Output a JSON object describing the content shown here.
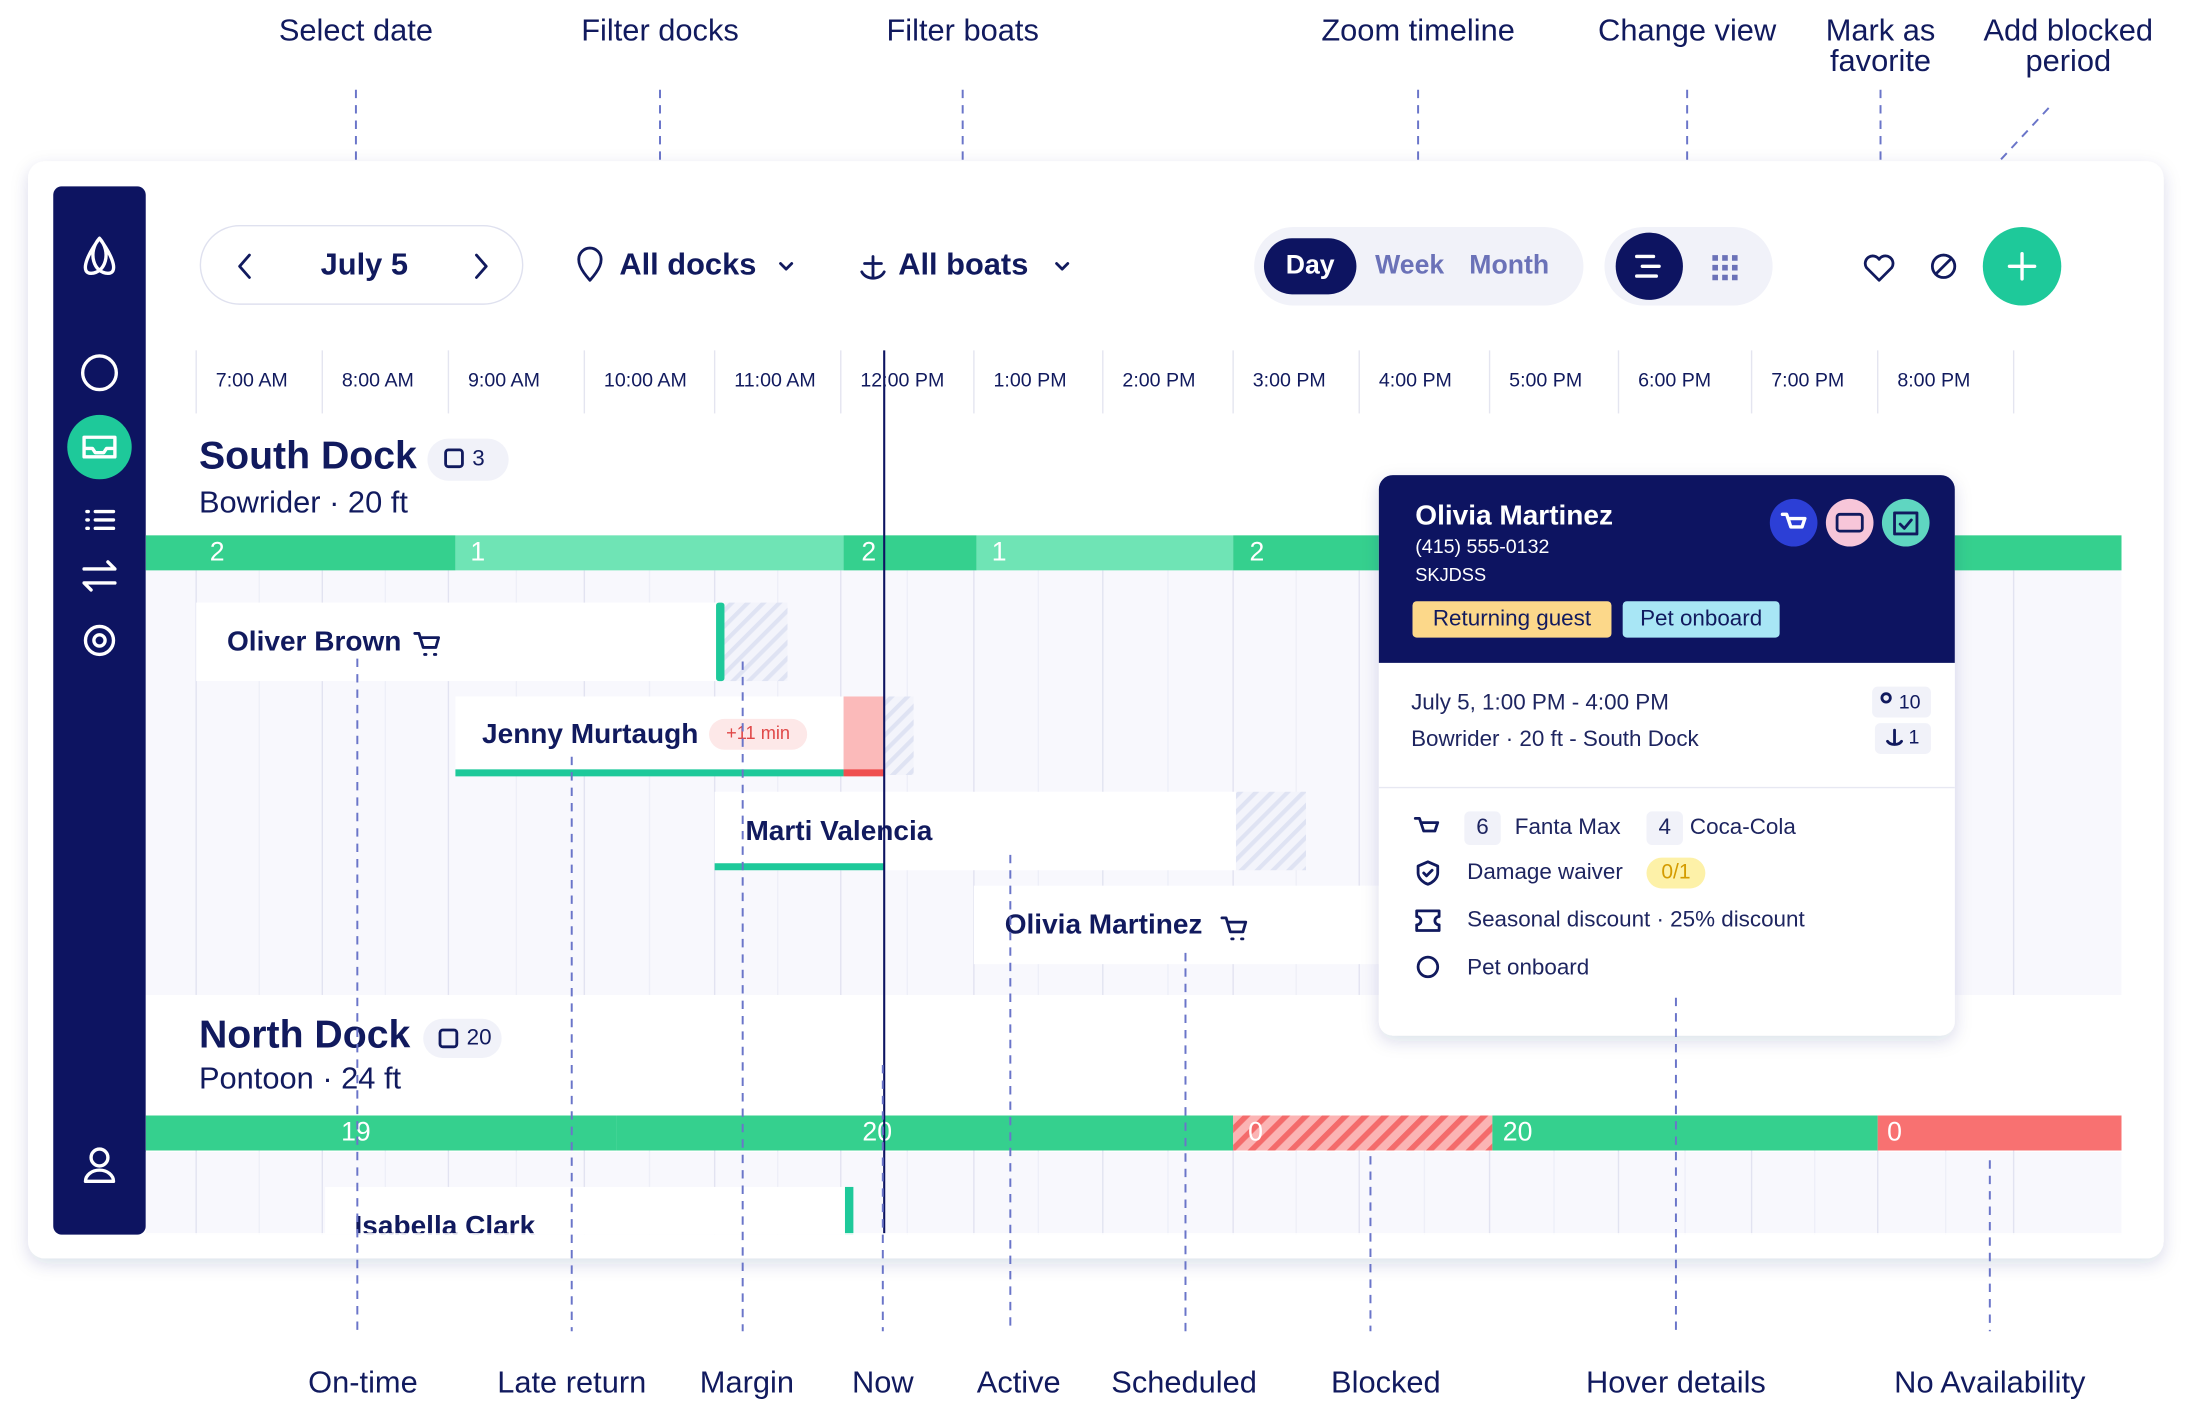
{
  "annotations_top": [
    {
      "lines": [
        "Select date"
      ]
    },
    {
      "lines": [
        "Filter docks"
      ]
    },
    {
      "lines": [
        "Filter boats"
      ]
    },
    {
      "lines": [
        "Zoom timeline"
      ]
    },
    {
      "lines": [
        "Change view"
      ]
    },
    {
      "lines": [
        "Mark as",
        "favorite"
      ]
    },
    {
      "lines": [
        "Add blocked",
        "period"
      ]
    }
  ],
  "annotations_bottom": [
    "On-time",
    "Late return",
    "Margin",
    "Now",
    "Active",
    "Scheduled",
    "Blocked",
    "Hover details",
    "No Availability"
  ],
  "toolbar": {
    "date": "July 5",
    "docks": "All docks",
    "boats": "All boats",
    "views": [
      "Day",
      "Week",
      "Month"
    ]
  },
  "timeline": [
    "7:00 AM",
    "8:00 AM",
    "9:00 AM",
    "10:00 AM",
    "11:00 AM",
    "12:00 PM",
    "1:00 PM",
    "2:00 PM",
    "3:00 PM",
    "4:00 PM",
    "5:00 PM",
    "6:00 PM",
    "7:00 PM",
    "8:00 PM"
  ],
  "docks": [
    {
      "name": "South Dock",
      "count": 3,
      "boat": "Bowrider · 20 ft",
      "availability": [
        2,
        1,
        2,
        1,
        2
      ],
      "bookings": [
        {
          "name": "Oliver Brown"
        },
        {
          "name": "Jenny Murtaugh",
          "badge": "+11 min"
        },
        {
          "name": "Marti Valencia"
        },
        {
          "name": "Olivia Martinez"
        }
      ]
    },
    {
      "name": "North Dock",
      "count": 20,
      "boat": "Pontoon · 24 ft",
      "availability": [
        19,
        20,
        0,
        20,
        0
      ],
      "bookings": [
        {
          "name": "Isabella Clark"
        }
      ]
    }
  ],
  "popup": {
    "name": "Olivia Martinez",
    "phone": "(415) 555-0132",
    "code": "SKJDSS",
    "tags": [
      "Returning guest",
      "Pet onboard"
    ],
    "time": "July 5, 1:00 PM - 4:00 PM",
    "guests": 10,
    "boat": "Bowrider · 20 ft  - South Dock",
    "boats": 1,
    "items": [
      {
        "qty": 6,
        "name": "Fanta Max"
      },
      {
        "qty": 4,
        "name": "Coca-Cola"
      }
    ],
    "waiver": "Damage waiver",
    "waiver_status": "0/1",
    "discount": "Seasonal discount · 25% discount",
    "note": "Pet onboard"
  }
}
